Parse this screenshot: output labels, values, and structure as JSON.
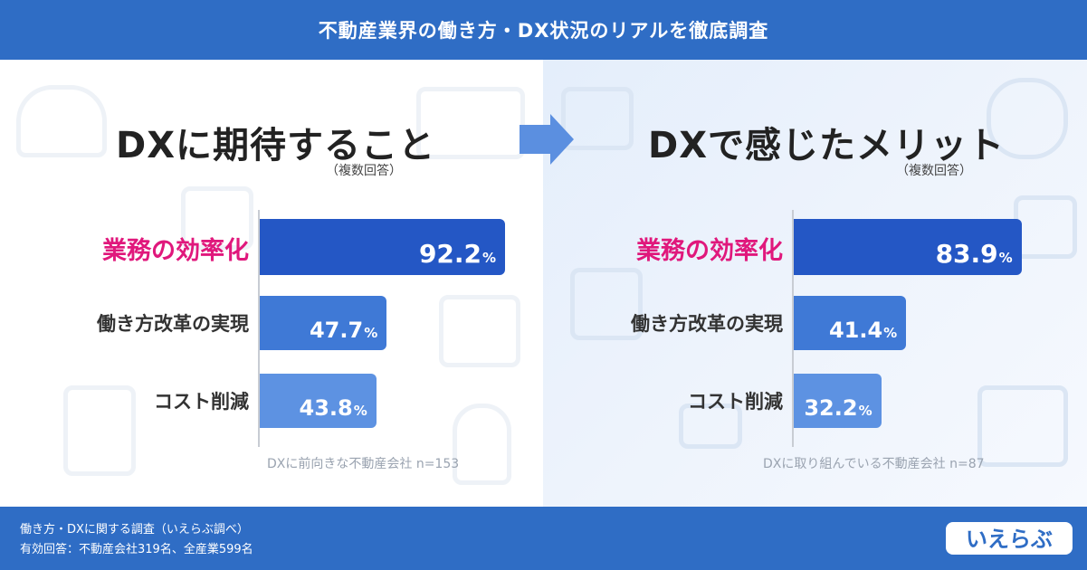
{
  "header": {
    "title": "不動産業界の働き方・DX状況のリアルを徹底調査"
  },
  "chart_data": [
    {
      "type": "bar",
      "orientation": "horizontal",
      "title": "DXに期待すること",
      "subtitle": "（複数回答）",
      "categories": [
        "業務の効率化",
        "働き方改革の実現",
        "コスト削減"
      ],
      "values": [
        92.2,
        47.7,
        43.8
      ],
      "value_labels": [
        "92.2",
        "47.7",
        "43.8"
      ],
      "unit": "%",
      "xlim": [
        0,
        100
      ],
      "colors": [
        "#2457c5",
        "#3f79d6",
        "#5d92e2"
      ],
      "note": "DXに前向きな不動産会社 n=153",
      "grid": false,
      "legend": "none"
    },
    {
      "type": "bar",
      "orientation": "horizontal",
      "title": "DXで感じたメリット",
      "subtitle": "（複数回答）",
      "categories": [
        "業務の効率化",
        "働き方改革の実現",
        "コスト削減"
      ],
      "values": [
        83.9,
        41.4,
        32.2
      ],
      "value_labels": [
        "83.9",
        "41.4",
        "32.2"
      ],
      "unit": "%",
      "xlim": [
        0,
        100
      ],
      "colors": [
        "#2457c5",
        "#3f79d6",
        "#5d92e2"
      ],
      "note": "DXに取り組んでいる不動産会社 n=87",
      "grid": false,
      "legend": "none"
    }
  ],
  "footer": {
    "line1": "働き方・DXに関する調査（いえらぶ調べ）",
    "line2": "有効回答：不動産会社319名、全産業599名",
    "logo_text": "いえらぶ"
  }
}
